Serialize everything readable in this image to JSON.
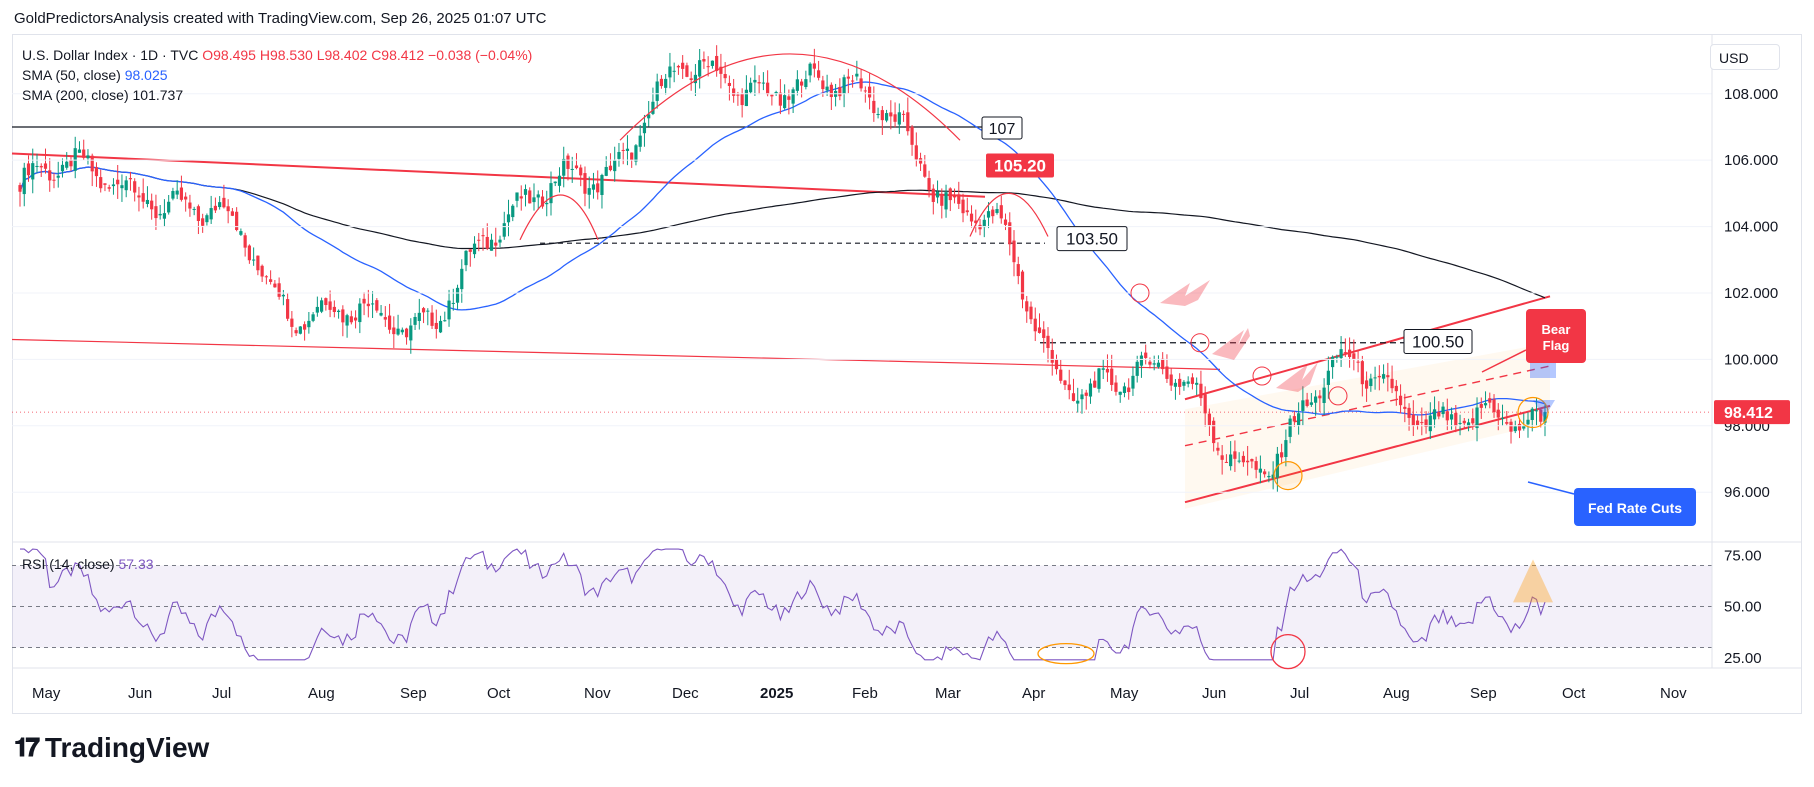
{
  "header": {
    "text": "GoldPredictorsAnalysis created with TradingView.com, Sep 26, 2025 01:07 UTC"
  },
  "legend": {
    "symbol": "U.S. Dollar Index · 1D · TVC",
    "open": "O98.495",
    "high": "H98.530",
    "low": "L98.402",
    "close": "C98.412",
    "change": "−0.038 (−0.04%)",
    "sma50_label": "SMA (50, close)",
    "sma50_value": "98.025",
    "sma200_label": "SMA (200, close)",
    "sma200_value": "101.737"
  },
  "currency": "USD",
  "rsi_legend": {
    "label": "RSI (14, close)",
    "value": "57.33"
  },
  "branding": {
    "name": "TradingView"
  },
  "chart_data": {
    "type": "candlestick",
    "price_axis": {
      "ticks": [
        "108.000",
        "106.000",
        "104.000",
        "102.000",
        "100.000",
        "98.000",
        "96.000"
      ],
      "ylim": [
        94.5,
        109.8
      ]
    },
    "rsi_axis": {
      "ticks": [
        "75.00",
        "50.00",
        "25.00"
      ],
      "ylim": [
        20,
        80
      ]
    },
    "x_labels": [
      "May",
      "Jun",
      "Jul",
      "Aug",
      "Sep",
      "Oct",
      "Nov",
      "Dec",
      "2025",
      "Feb",
      "Mar",
      "Apr",
      "May",
      "Jun",
      "Jul",
      "Aug",
      "Sep",
      "Oct",
      "Nov"
    ],
    "last_price": "98.412",
    "annotations": {
      "level_107": "107",
      "level_105_20": "105.20",
      "level_103_50": "103.50",
      "level_100_50": "100.50",
      "bear_flag": "Bear\nFlag",
      "fed_rate_cuts": "Fed Rate Cuts"
    },
    "price_monthly_closes": [
      {
        "m": "May",
        "v": 105.3
      },
      {
        "m": "Jun",
        "v": 105.6
      },
      {
        "m": "Jul",
        "v": 104.1
      },
      {
        "m": "Aug",
        "v": 101.7
      },
      {
        "m": "Sep",
        "v": 100.8
      },
      {
        "m": "Oct",
        "v": 103.9
      },
      {
        "m": "Nov",
        "v": 105.8
      },
      {
        "m": "Dec",
        "v": 108.4
      },
      {
        "m": "Jan",
        "v": 108.4
      },
      {
        "m": "Feb",
        "v": 107.6
      },
      {
        "m": "Mar",
        "v": 104.2
      },
      {
        "m": "Apr",
        "v": 99.5
      },
      {
        "m": "May",
        "v": 99.3
      },
      {
        "m": "Jun",
        "v": 96.9
      },
      {
        "m": "Jul",
        "v": 99.9
      },
      {
        "m": "Aug",
        "v": 97.8
      },
      {
        "m": "Sep",
        "v": 98.4
      }
    ],
    "colors": {
      "up": "#089981",
      "down": "#f23645",
      "sma50": "#2962ff",
      "sma200": "#131722",
      "rsi": "#7e57c2",
      "accent": "#f23645",
      "blue": "#2962ff"
    }
  }
}
